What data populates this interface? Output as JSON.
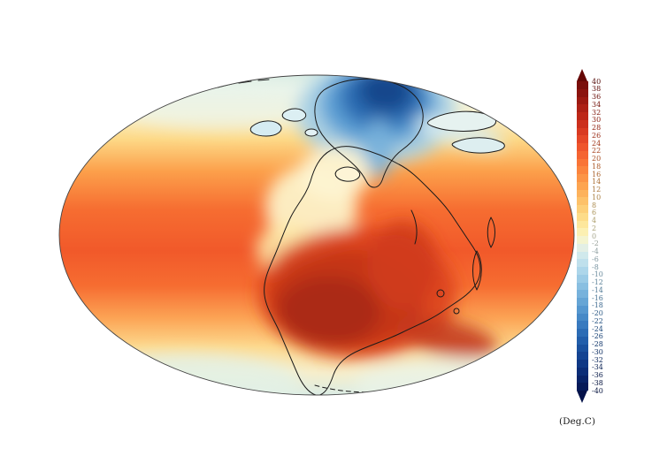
{
  "chart_data": {
    "type": "heatmap",
    "title": "",
    "projection": "elliptical global projection (Mollweide-style)",
    "description": "Filled-contour global surface temperature map. Warm oranges and reds dominate low latitudes, a dark blue cold polar region sits at top center, pale near-zero bands run along the upper and lower edges of the ellipse, and a dark red hot continental interior lies south of center. Black coastlines outline the landmasses.",
    "units_label": "(Deg.C)",
    "colorbar": {
      "min": -40,
      "max": 40,
      "step": 2,
      "tick_labels": [
        40,
        38,
        36,
        34,
        32,
        30,
        28,
        26,
        24,
        22,
        20,
        18,
        16,
        14,
        12,
        10,
        8,
        6,
        4,
        2,
        0,
        -2,
        -4,
        -6,
        -8,
        -10,
        -12,
        -14,
        -16,
        -18,
        -20,
        -22,
        -24,
        -26,
        -28,
        -30,
        -32,
        -34,
        -36,
        -38,
        -40
      ],
      "band_colors_top_to_bottom": [
        "#7a0f0b",
        "#8b130e",
        "#9c1911",
        "#ad2015",
        "#bd2718",
        "#cc2f1c",
        "#d93a21",
        "#e54727",
        "#ef552c",
        "#f56431",
        "#f97436",
        "#fb843d",
        "#fc9446",
        "#fda450",
        "#fdb25c",
        "#fdc169",
        "#fdcf78",
        "#fddc89",
        "#fde79c",
        "#fcf0b2",
        "#f4f4cf",
        "#e3efe5",
        "#d0e9ec",
        "#bfe0ec",
        "#add6ea",
        "#9bcbe6",
        "#89bfe1",
        "#77b2dc",
        "#66a5d5",
        "#5597cf",
        "#4689c7",
        "#387abf",
        "#2c6cb5",
        "#225eaa",
        "#1a519e",
        "#144492",
        "#0f3885",
        "#0b2d77",
        "#082368",
        "#061a59"
      ],
      "over_arrow_color": "#650705",
      "under_arrow_color": "#04124a",
      "tick_label_darken_factor": 0.68
    },
    "estimated_regions": [
      {
        "region": "polar cold cap, top center",
        "approx_temp_c": [
          -40,
          -10
        ]
      },
      {
        "region": "upper-edge band",
        "approx_temp_c": [
          -2,
          6
        ]
      },
      {
        "region": "mid-latitude ocean",
        "approx_temp_c": [
          12,
          22
        ]
      },
      {
        "region": "tropical ocean",
        "approx_temp_c": [
          24,
          28
        ]
      },
      {
        "region": "hot continental interior, center-south",
        "approx_temp_c": [
          30,
          40
        ]
      },
      {
        "region": "pale central land band, center-left",
        "approx_temp_c": [
          4,
          12
        ]
      },
      {
        "region": "lower-edge band",
        "approx_temp_c": [
          0,
          8
        ]
      }
    ],
    "coastline_color": "#1a1a1a",
    "background_color": "#ffffff"
  }
}
